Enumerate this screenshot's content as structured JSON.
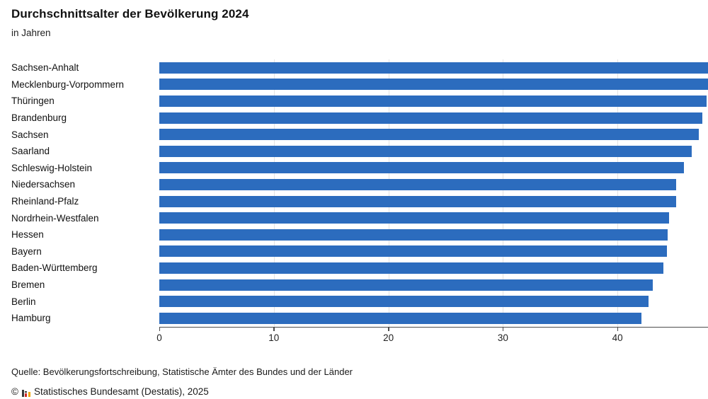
{
  "chart_data": {
    "type": "bar",
    "orientation": "horizontal",
    "title": "Durchschnittsalter der Bevölkerung 2024",
    "subtitle": "in Jahren",
    "categories": [
      "Sachsen-Anhalt",
      "Mecklenburg-Vorpommern",
      "Thüringen",
      "Brandenburg",
      "Sachsen",
      "Saarland",
      "Schleswig-Holstein",
      "Niedersachsen",
      "Rheinland-Pfalz",
      "Nordrhein-Westfalen",
      "Hessen",
      "Bayern",
      "Baden-Württemberg",
      "Bremen",
      "Berlin",
      "Hamburg"
    ],
    "values": [
      48.2,
      48.0,
      47.8,
      47.4,
      47.1,
      46.5,
      45.8,
      45.1,
      45.1,
      44.5,
      44.4,
      44.3,
      44.0,
      43.1,
      42.7,
      42.1
    ],
    "xlabel": "",
    "ylabel": "",
    "xlim": [
      0,
      47.9
    ],
    "xticks": [
      0,
      10,
      20,
      30,
      40
    ],
    "grid": "vertical-light",
    "legend": "none",
    "bar_color": "#2c6cbe",
    "gridline_color": "#e4e4e4",
    "axis_color": "#4d4d4d"
  },
  "footer": {
    "source": "Quelle: Bevölkerungsfortschreibung, Statistische Ämter des Bundes und der Länder",
    "copyright_symbol": "©",
    "copyright_text": "Statistisches Bundesamt (Destatis), 2025"
  }
}
